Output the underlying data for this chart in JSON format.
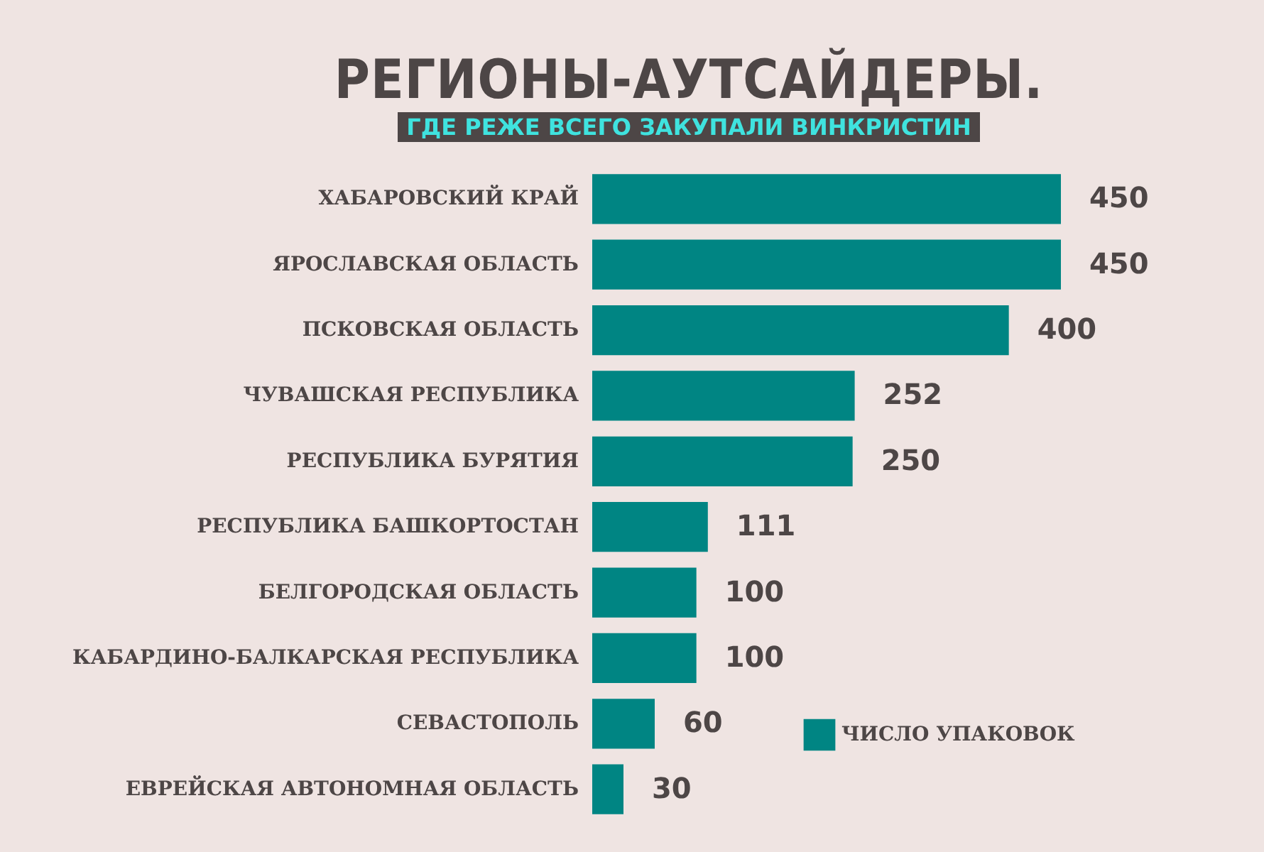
{
  "chart_data": {
    "type": "bar",
    "orientation": "horizontal",
    "title": "РЕГИОНЫ-АУТСАЙДЕРЫ.",
    "subtitle": "ГДЕ РЕЖЕ ВСЕГО ЗАКУПАЛИ ВИНКРИСТИН",
    "categories": [
      "ХАБАРОВСКИЙ КРАЙ",
      "ЯРОСЛАВСКАЯ ОБЛАСТЬ",
      "ПСКОВСКАЯ ОБЛАСТЬ",
      "ЧУВАШСКАЯ РЕСПУБЛИКА",
      "РЕСПУБЛИКА БУРЯТИЯ",
      "РЕСПУБЛИКА БАШКОРТОСТАН",
      "БЕЛГОРОДСКАЯ ОБЛАСТЬ",
      "КАБАРДИНО-БАЛКАРСКАЯ РЕСПУБЛИКА",
      "СЕВАСТОПОЛЬ",
      "ЕВРЕЙСКАЯ АВТОНОМНАЯ ОБЛАСТЬ"
    ],
    "series": [
      {
        "name": "ЧИСЛО УПАКОВОК",
        "color": "#008583",
        "values": [
          450,
          450,
          400,
          252,
          250,
          111,
          100,
          100,
          60,
          30
        ]
      }
    ],
    "data_labels": true,
    "legend": "bottom right",
    "tick_labels": "y"
  }
}
